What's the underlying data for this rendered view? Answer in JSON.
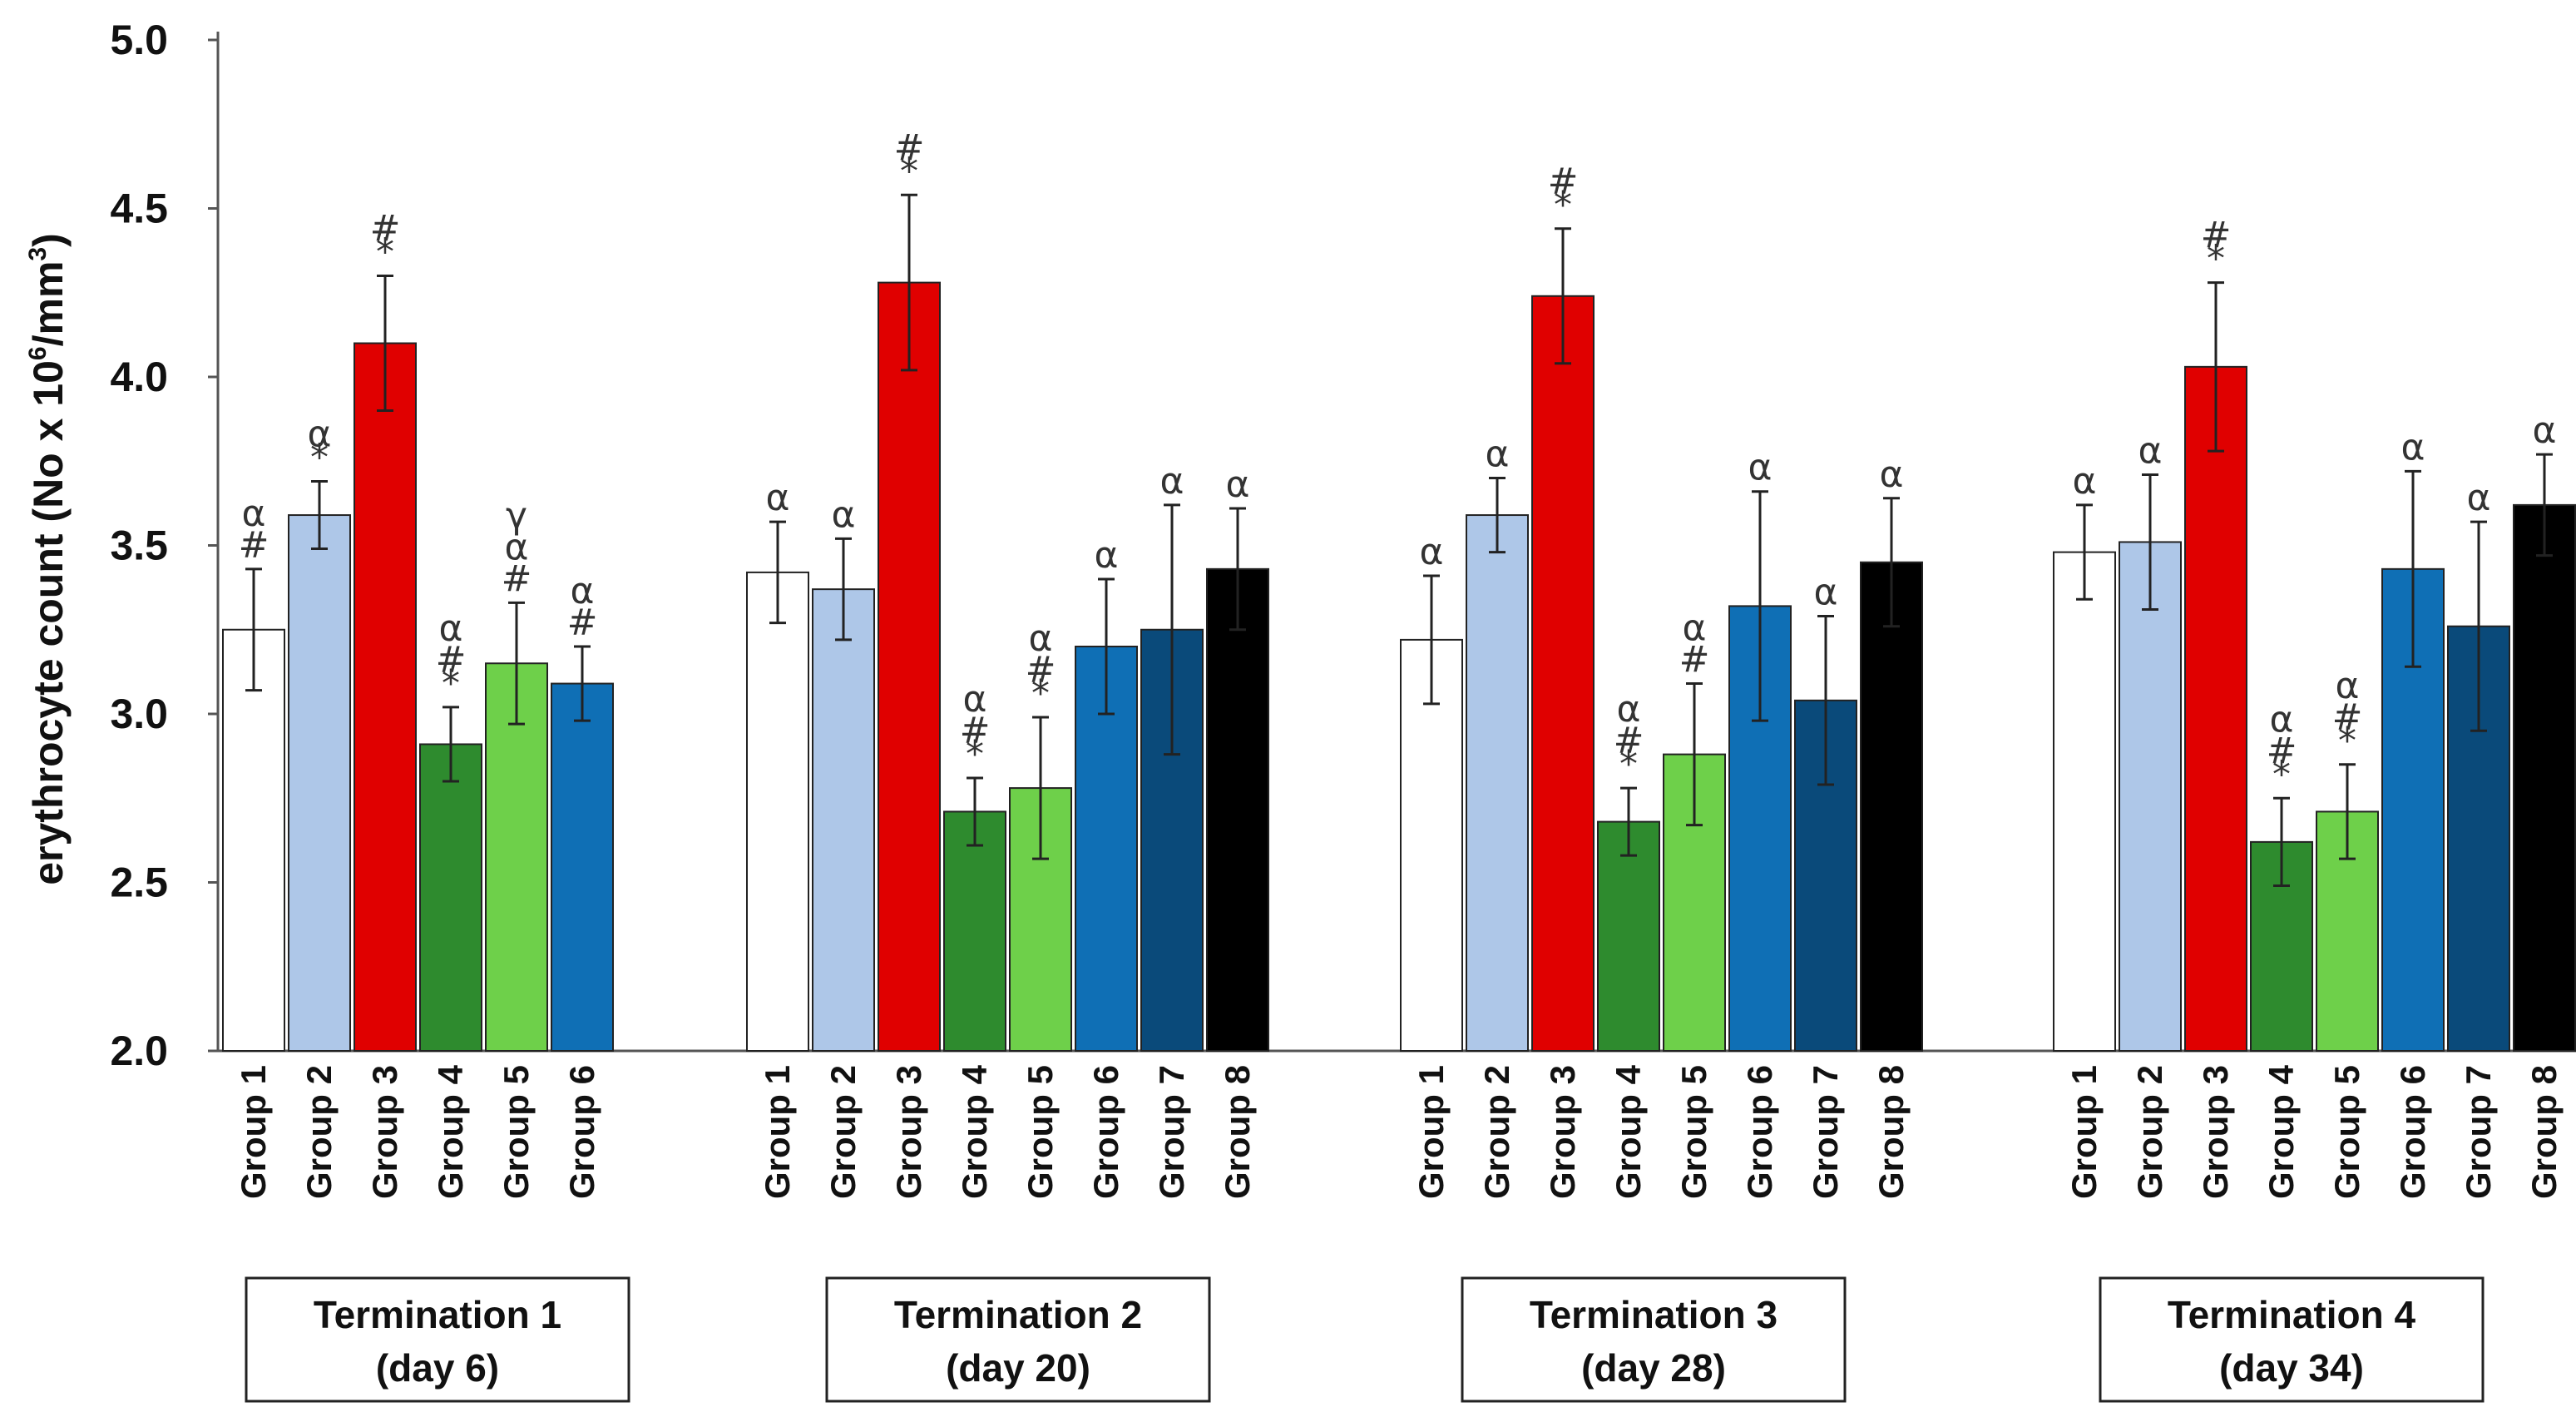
{
  "chart_data": {
    "type": "bar",
    "title": "",
    "ylabel": "erythrocyte count (No x 10",
    "ylabel_sup": "6",
    "ylabel_unit": "/mm",
    "ylabel_unit_sup": "3",
    "ylabel_close": ")",
    "ylim": [
      2.0,
      5.0
    ],
    "yticks": [
      "2.0",
      "2.5",
      "3.0",
      "3.5",
      "4.0",
      "4.5",
      "5.0"
    ],
    "colors": {
      "Group 1": "#ffffff",
      "Group 2": "#aec7e8",
      "Group 3": "#e00000",
      "Group 4": "#2e8b2e",
      "Group 5": "#6ed04a",
      "Group 6": "#0f6fb5",
      "Group 7": "#0a4a7a",
      "Group 8": "#000000"
    },
    "terminations": [
      {
        "label": "Termination 1",
        "sublabel": "(day 6)",
        "bars": [
          {
            "group": "Group 1",
            "value": 3.25,
            "error": 0.18,
            "annotations": [
              "α",
              "#"
            ]
          },
          {
            "group": "Group 2",
            "value": 3.59,
            "error": 0.1,
            "annotations": [
              "α",
              "*"
            ]
          },
          {
            "group": "Group 3",
            "value": 4.1,
            "error": 0.2,
            "annotations": [
              "#",
              "*"
            ]
          },
          {
            "group": "Group 4",
            "value": 2.91,
            "error": 0.11,
            "annotations": [
              "α",
              "#",
              "*"
            ]
          },
          {
            "group": "Group 5",
            "value": 3.15,
            "error": 0.18,
            "annotations": [
              "γ",
              "α",
              "#"
            ]
          },
          {
            "group": "Group 6",
            "value": 3.09,
            "error": 0.11,
            "annotations": [
              "α",
              "#"
            ]
          }
        ]
      },
      {
        "label": "Termination 2",
        "sublabel": "(day 20)",
        "bars": [
          {
            "group": "Group 1",
            "value": 3.42,
            "error": 0.15,
            "annotations": [
              "α"
            ]
          },
          {
            "group": "Group 2",
            "value": 3.37,
            "error": 0.15,
            "annotations": [
              "α"
            ]
          },
          {
            "group": "Group 3",
            "value": 4.28,
            "error": 0.26,
            "annotations": [
              "#",
              "*"
            ]
          },
          {
            "group": "Group 4",
            "value": 2.71,
            "error": 0.1,
            "annotations": [
              "α",
              "#",
              "*"
            ]
          },
          {
            "group": "Group 5",
            "value": 2.78,
            "error": 0.21,
            "annotations": [
              "α",
              "#",
              "*"
            ]
          },
          {
            "group": "Group 6",
            "value": 3.2,
            "error": 0.2,
            "annotations": [
              "α"
            ]
          },
          {
            "group": "Group 7",
            "value": 3.25,
            "error": 0.37,
            "annotations": [
              "α"
            ]
          },
          {
            "group": "Group 8",
            "value": 3.43,
            "error": 0.18,
            "annotations": [
              "α"
            ]
          }
        ]
      },
      {
        "label": "Termination 3",
        "sublabel": "(day 28)",
        "bars": [
          {
            "group": "Group 1",
            "value": 3.22,
            "error": 0.19,
            "annotations": [
              "α"
            ]
          },
          {
            "group": "Group 2",
            "value": 3.59,
            "error": 0.11,
            "annotations": [
              "α"
            ]
          },
          {
            "group": "Group 3",
            "value": 4.24,
            "error": 0.2,
            "annotations": [
              "#",
              "*"
            ]
          },
          {
            "group": "Group 4",
            "value": 2.68,
            "error": 0.1,
            "annotations": [
              "α",
              "#",
              "*"
            ]
          },
          {
            "group": "Group 5",
            "value": 2.88,
            "error": 0.21,
            "annotations": [
              "α",
              "#"
            ]
          },
          {
            "group": "Group 6",
            "value": 3.32,
            "error": 0.34,
            "annotations": [
              "α"
            ]
          },
          {
            "group": "Group 7",
            "value": 3.04,
            "error": 0.25,
            "annotations": [
              "α"
            ]
          },
          {
            "group": "Group 8",
            "value": 3.45,
            "error": 0.19,
            "annotations": [
              "α"
            ]
          }
        ]
      },
      {
        "label": "Termination 4",
        "sublabel": "(day 34)",
        "bars": [
          {
            "group": "Group 1",
            "value": 3.48,
            "error": 0.14,
            "annotations": [
              "α"
            ]
          },
          {
            "group": "Group 2",
            "value": 3.51,
            "error": 0.2,
            "annotations": [
              "α"
            ]
          },
          {
            "group": "Group 3",
            "value": 4.03,
            "error": 0.25,
            "annotations": [
              "#",
              "*"
            ]
          },
          {
            "group": "Group 4",
            "value": 2.62,
            "error": 0.13,
            "annotations": [
              "α",
              "#",
              "*"
            ]
          },
          {
            "group": "Group 5",
            "value": 2.71,
            "error": 0.14,
            "annotations": [
              "α",
              "#",
              "*"
            ]
          },
          {
            "group": "Group 6",
            "value": 3.43,
            "error": 0.29,
            "annotations": [
              "α"
            ]
          },
          {
            "group": "Group 7",
            "value": 3.26,
            "error": 0.31,
            "annotations": [
              "α"
            ]
          },
          {
            "group": "Group 8",
            "value": 3.62,
            "error": 0.15,
            "annotations": [
              "α"
            ]
          }
        ]
      }
    ]
  }
}
